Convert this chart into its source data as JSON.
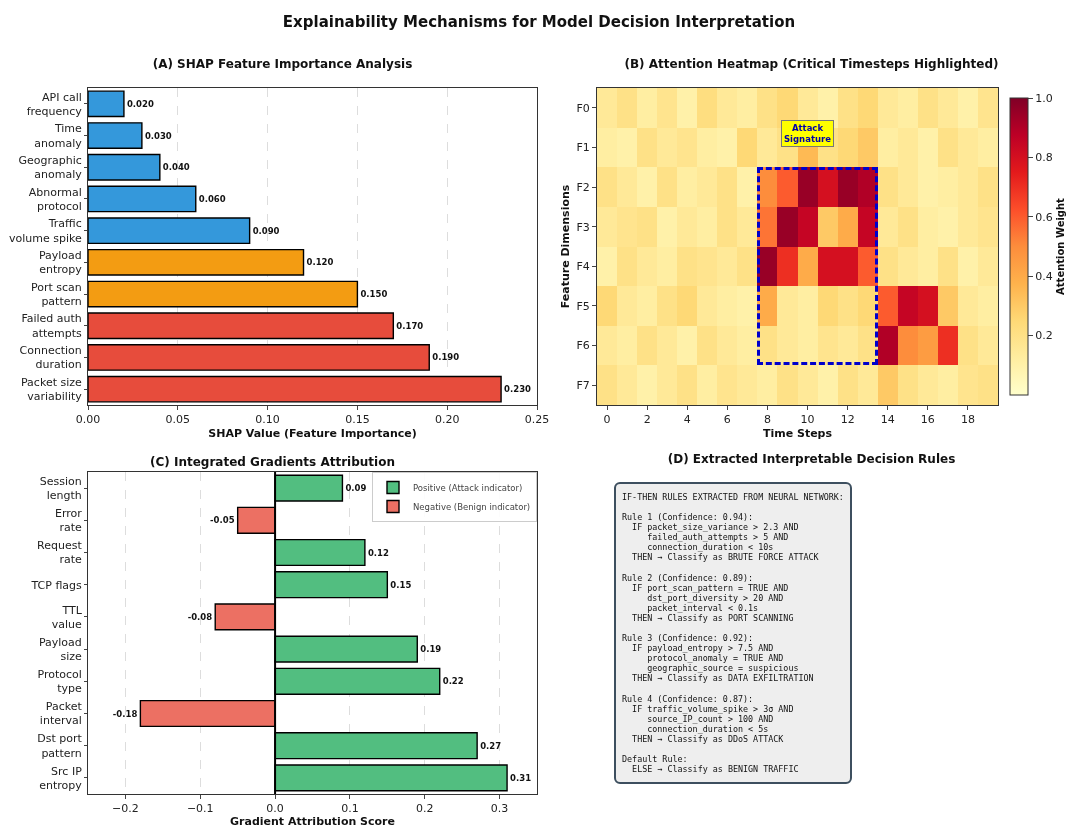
{
  "chart_data": [
    {
      "type": "other",
      "title": "Explainability Mechanisms for Model Decision Interpretation"
    },
    {
      "type": "bar",
      "title": "(A) SHAP Feature Importance Analysis",
      "orientation": "horizontal",
      "xlabel": "SHAP Value (Feature Importance)",
      "categories": [
        "API call\nfrequency",
        "Time\nanomaly",
        "Geographic\nanomaly",
        "Abnormal\nprotocol",
        "Traffic\nvolume spike",
        "Payload\nentropy",
        "Port scan\npattern",
        "Failed auth\nattempts",
        "Connection\nduration",
        "Packet size\nvariability"
      ],
      "values": [
        0.02,
        0.03,
        0.04,
        0.06,
        0.09,
        0.12,
        0.15,
        0.17,
        0.19,
        0.23
      ],
      "value_labels": [
        "0.020",
        "0.030",
        "0.040",
        "0.060",
        "0.090",
        "0.120",
        "0.150",
        "0.170",
        "0.190",
        "0.230"
      ],
      "colors": [
        "#3498db",
        "#3498db",
        "#3498db",
        "#3498db",
        "#3498db",
        "#f39c12",
        "#f39c12",
        "#e74c3c",
        "#e74c3c",
        "#e74c3c"
      ],
      "xlim": [
        0,
        0.25
      ],
      "xticks": [
        {
          "value": 0,
          "label": "0.00"
        },
        {
          "value": 0.05,
          "label": "0.05"
        },
        {
          "value": 0.1,
          "label": "0.10"
        },
        {
          "value": 0.15,
          "label": "0.15"
        },
        {
          "value": 0.2,
          "label": "0.20"
        },
        {
          "value": 0.25,
          "label": "0.25"
        }
      ],
      "grid": "x"
    },
    {
      "type": "heatmap",
      "title": "(B) Attention Heatmap (Critical Timesteps Highlighted)",
      "xlabel": "Time Steps",
      "ylabel": "Feature Dimensions",
      "clabel": "Attention Weight",
      "x": [
        0,
        1,
        2,
        3,
        4,
        5,
        6,
        7,
        8,
        9,
        10,
        11,
        12,
        13,
        14,
        15,
        16,
        17,
        18,
        19
      ],
      "y_categories": [
        "F0",
        "F1",
        "F2",
        "F3",
        "F4",
        "F5",
        "F6",
        "F7"
      ],
      "cells": [
        [
          0.15,
          0.2,
          0.12,
          0.18,
          0.1,
          0.22,
          0.15,
          0.12,
          0.2,
          0.25,
          0.15,
          0.1,
          0.2,
          0.25,
          0.15,
          0.12,
          0.2,
          0.15,
          0.1,
          0.18
        ],
        [
          0.12,
          0.1,
          0.2,
          0.15,
          0.18,
          0.12,
          0.1,
          0.25,
          0.15,
          0.2,
          0.35,
          0.2,
          0.25,
          0.3,
          0.12,
          0.15,
          0.1,
          0.2,
          0.15,
          0.12
        ],
        [
          0.2,
          0.15,
          0.1,
          0.2,
          0.12,
          0.15,
          0.2,
          0.1,
          0.5,
          0.6,
          0.95,
          0.8,
          0.95,
          0.9,
          0.2,
          0.15,
          0.1,
          0.12,
          0.15,
          0.2
        ],
        [
          0.15,
          0.18,
          0.2,
          0.1,
          0.15,
          0.12,
          0.2,
          0.15,
          0.55,
          0.95,
          0.85,
          0.3,
          0.4,
          0.85,
          0.15,
          0.2,
          0.12,
          0.1,
          0.15,
          0.18
        ],
        [
          0.1,
          0.2,
          0.15,
          0.12,
          0.2,
          0.18,
          0.15,
          0.2,
          0.95,
          0.7,
          0.4,
          0.8,
          0.8,
          0.6,
          0.2,
          0.15,
          0.12,
          0.2,
          0.1,
          0.15
        ],
        [
          0.25,
          0.15,
          0.12,
          0.2,
          0.25,
          0.15,
          0.12,
          0.1,
          0.4,
          0.15,
          0.12,
          0.25,
          0.2,
          0.25,
          0.6,
          0.85,
          0.8,
          0.3,
          0.15,
          0.12
        ],
        [
          0.15,
          0.12,
          0.2,
          0.15,
          0.1,
          0.2,
          0.15,
          0.12,
          0.2,
          0.15,
          0.12,
          0.18,
          0.15,
          0.2,
          0.9,
          0.5,
          0.45,
          0.7,
          0.2,
          0.15
        ],
        [
          0.2,
          0.15,
          0.1,
          0.15,
          0.2,
          0.12,
          0.18,
          0.15,
          0.12,
          0.2,
          0.15,
          0.1,
          0.2,
          0.15,
          0.3,
          0.2,
          0.15,
          0.12,
          0.18,
          0.2
        ]
      ],
      "xlim": [
        -0.5,
        19.5
      ],
      "xticks": [
        0,
        2,
        4,
        6,
        8,
        10,
        12,
        14,
        16,
        18
      ],
      "clim": [
        0,
        1
      ],
      "cticks": [
        0.2,
        0.4,
        0.6,
        0.8,
        {
          "value": 1,
          "label": "1.0"
        }
      ],
      "annotations": [
        "Attack\nSignature"
      ]
    },
    {
      "type": "bar",
      "title": "(C) Integrated Gradients Attribution",
      "orientation": "horizontal",
      "xlabel": "Gradient Attribution Score",
      "categories": [
        "Session\nlength",
        "Error\nrate",
        "Request\nrate",
        "TCP flags",
        "TTL\nvalue",
        "Payload\nsize",
        "Protocol\ntype",
        "Packet\ninterval",
        "Dst port\npattern",
        "Src IP\nentropy"
      ],
      "series": [
        {
          "name": "Positive (Attack indicator)",
          "color": "#52be80",
          "values": [
            0.09,
            null,
            0.12,
            0.15,
            null,
            0.19,
            0.22,
            null,
            0.27,
            0.31
          ]
        },
        {
          "name": "Negative (Benign indicator)",
          "color": "#ec7063",
          "values": [
            null,
            -0.05,
            null,
            null,
            -0.08,
            null,
            null,
            -0.18,
            null,
            null
          ]
        }
      ],
      "data_labels": true,
      "xlim": [
        -0.25,
        0.35
      ],
      "xticks": [
        {
          "value": -0.2,
          "label": "−0.2"
        },
        {
          "value": -0.1,
          "label": "−0.1"
        },
        {
          "value": 0,
          "label": "0.0"
        },
        0.1,
        0.2,
        0.3
      ],
      "ref_lines": [
        {
          "axis": "x",
          "value": 0,
          "color": "#000000"
        }
      ],
      "grid": "x",
      "legend": "top right"
    },
    {
      "type": "other",
      "title": "(D) Extracted Interpretable Decision Rules",
      "annotations": [
        "IF-THEN RULES EXTRACTED FROM NEURAL NETWORK:\n\nRule 1 (Confidence: 0.94):\n  IF packet_size_variance > 2.3 AND\n     failed_auth_attempts > 5 AND\n     connection_duration < 10s\n  THEN → Classify as BRUTE FORCE ATTACK\n\nRule 2 (Confidence: 0.89):\n  IF port_scan_pattern = TRUE AND\n     dst_port_diversity > 20 AND\n     packet_interval < 0.1s\n  THEN → Classify as PORT SCANNING\n\nRule 3 (Confidence: 0.92):\n  IF payload_entropy > 7.5 AND\n     protocol_anomaly = TRUE AND\n     geographic_source = suspicious\n  THEN → Classify as DATA EXFILTRATION\n\nRule 4 (Confidence: 0.87):\n  IF traffic_volume_spike > 3σ AND\n     source_IP_count > 100 AND\n     connection_duration < 5s\n  THEN → Classify as DDoS ATTACK\n\nDefault Rule:\n  ELSE → Classify as BENIGN TRAFFIC"
      ]
    }
  ]
}
